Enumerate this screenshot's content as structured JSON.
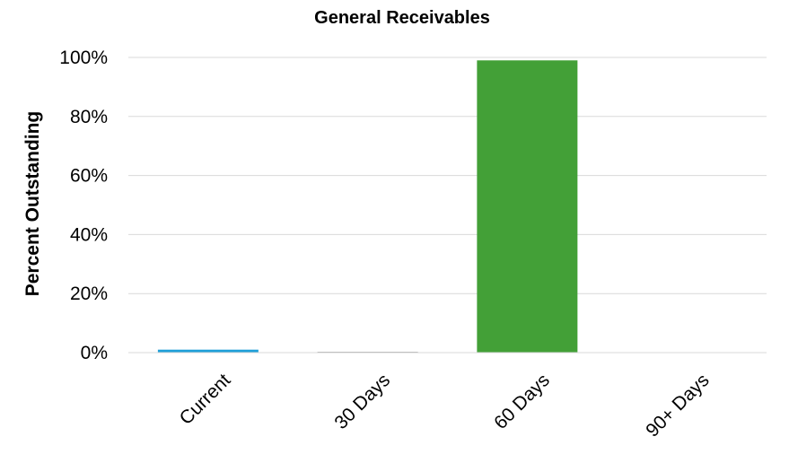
{
  "chart_data": {
    "type": "bar",
    "title": "General Receivables",
    "xlabel": "",
    "ylabel": "Percent Outstanding",
    "categories": [
      "Current",
      "30 Days",
      "60 Days",
      "90+ Days"
    ],
    "values": [
      1,
      0.3,
      99,
      0
    ],
    "colors": [
      "#1f9fd8",
      "#a6a6a6",
      "#43a037",
      "#f0a030"
    ],
    "ylim": [
      0,
      100
    ],
    "yticks": [
      0,
      20,
      40,
      60,
      80,
      100
    ],
    "ytick_labels": [
      "0%",
      "20%",
      "40%",
      "60%",
      "80%",
      "100%"
    ],
    "grid": true,
    "legend": "none"
  }
}
